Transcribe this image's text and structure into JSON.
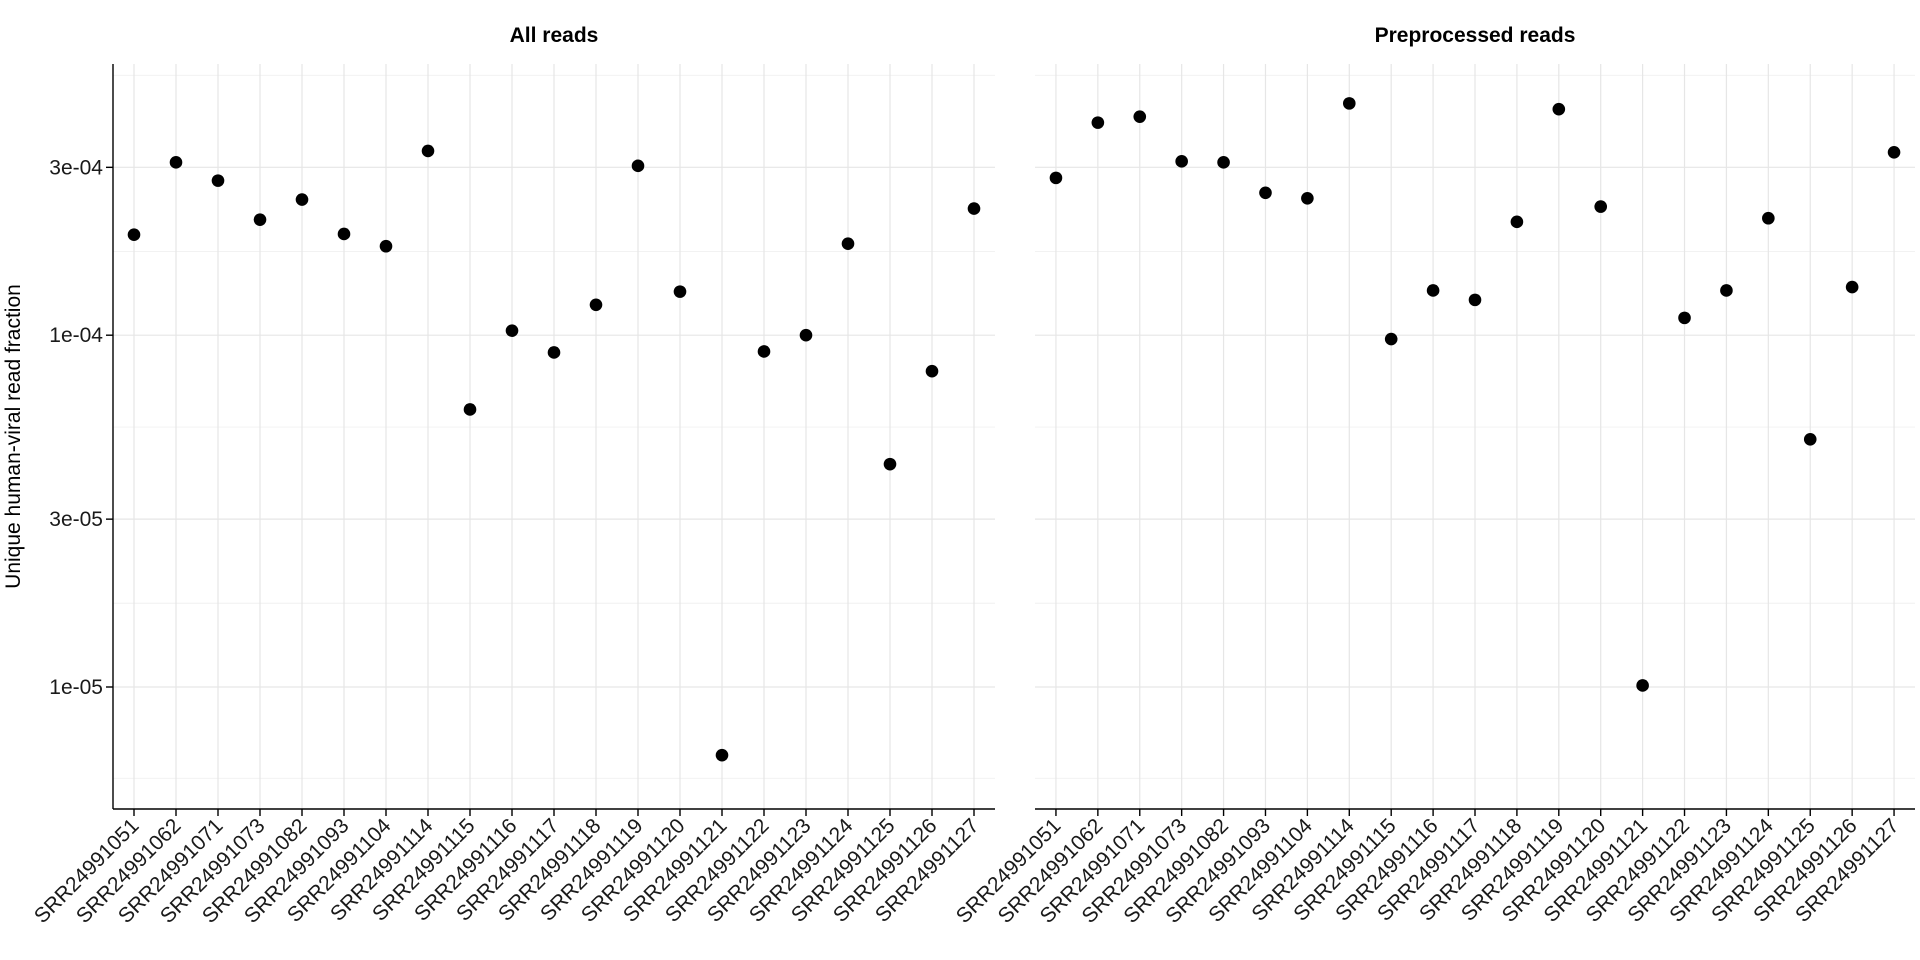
{
  "chart_data": {
    "type": "scatter",
    "ylabel": "Unique human-viral read fraction",
    "yscale": "log10",
    "ylim": [
      4.5e-06,
      0.00059
    ],
    "yticks": [
      1e-05,
      3e-05,
      0.0001,
      0.0003
    ],
    "ytick_labels": [
      "1e-05",
      "3e-05",
      "1e-04",
      "3e-04"
    ],
    "minor_yticks": [
      5.5e-06,
      1.73e-05,
      5.48e-05,
      0.000173,
      0.000548
    ],
    "categories": [
      "SRR24991051",
      "SRR24991062",
      "SRR24991071",
      "SRR24991073",
      "SRR24991082",
      "SRR24991093",
      "SRR24991104",
      "SRR24991114",
      "SRR24991115",
      "SRR24991116",
      "SRR24991117",
      "SRR24991118",
      "SRR24991119",
      "SRR24991120",
      "SRR24991121",
      "SRR24991122",
      "SRR24991123",
      "SRR24991124",
      "SRR24991125",
      "SRR24991126",
      "SRR24991127"
    ],
    "point_color": "#000000",
    "panels": [
      {
        "title": "All reads",
        "values": [
          0.000193,
          0.00031,
          0.000275,
          0.000213,
          0.000243,
          0.000194,
          0.000179,
          0.000334,
          6.15e-05,
          0.000103,
          8.93e-05,
          0.000122,
          0.000303,
          0.000133,
          6.4e-06,
          8.99e-05,
          0.0001,
          0.000182,
          4.3e-05,
          7.9e-05,
          0.000229
        ]
      },
      {
        "title": "Preprocessed reads",
        "values": [
          0.00028,
          0.000402,
          0.000418,
          0.000312,
          0.00031,
          0.000254,
          0.000245,
          0.000456,
          9.75e-05,
          0.000134,
          0.000126,
          0.00021,
          0.000439,
          0.000232,
          1.01e-05,
          0.000112,
          0.000134,
          0.000215,
          5.06e-05,
          0.000137,
          0.000331
        ]
      }
    ]
  }
}
